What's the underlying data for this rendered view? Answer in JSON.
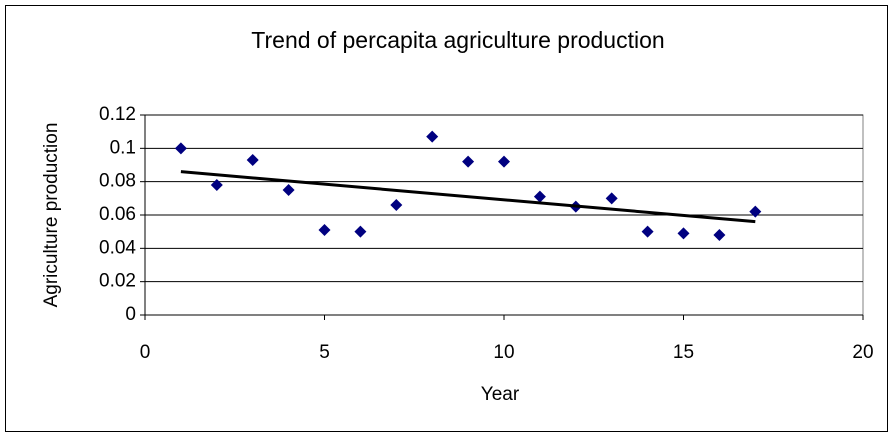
{
  "chart_data": {
    "type": "scatter",
    "title": "Trend of percapita agriculture production",
    "x_label": "Year",
    "y_label": "Agriculture production",
    "series": [
      {
        "color": "#000080",
        "x": [
          1,
          2,
          3,
          4,
          5,
          6,
          7,
          8,
          9,
          10,
          11,
          12,
          13,
          14,
          15,
          16,
          17
        ],
        "values": [
          0.1,
          0.078,
          0.093,
          0.075,
          0.051,
          0.05,
          0.066,
          0.107,
          0.092,
          0.092,
          0.071,
          0.065,
          0.07,
          0.05,
          0.049,
          0.048,
          0.062
        ]
      }
    ],
    "trendline": {
      "x": [
        1,
        17
      ],
      "values": [
        0.086,
        0.056
      ],
      "color": "#000000"
    },
    "xlim": [
      0,
      20
    ],
    "xticks": [
      0,
      5,
      10,
      15,
      20
    ],
    "ylim": [
      0,
      0.12
    ],
    "yticks": [
      0,
      0.02,
      0.04,
      0.06,
      0.08,
      0.1,
      0.12
    ],
    "grid": true
  }
}
